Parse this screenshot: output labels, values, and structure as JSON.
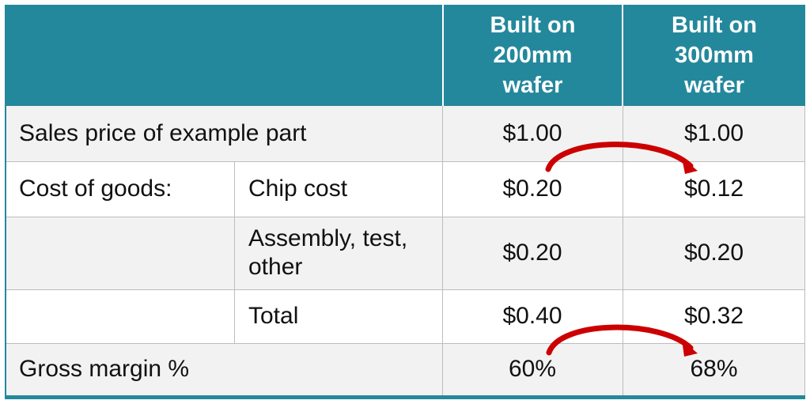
{
  "header": {
    "col_200": "Built on 200mm wafer",
    "col_300": "Built on 300mm wafer"
  },
  "rows": {
    "sales": {
      "label": "Sales price of example part",
      "v200": "$1.00",
      "v300": "$1.00"
    },
    "chip": {
      "label": "Cost of goods:",
      "sublabel": "Chip cost",
      "v200": "$0.20",
      "v300": "$0.12"
    },
    "assembly": {
      "sublabel": "Assembly, test, other",
      "v200": "$0.20",
      "v300": "$0.20"
    },
    "total": {
      "sublabel": "Total",
      "v200": "$0.40",
      "v300": "$0.32"
    },
    "margin": {
      "label": "Gross margin %",
      "v200": "60%",
      "v300": "68%"
    }
  },
  "colors": {
    "header": "#24889c",
    "row_shade": "#f2f2f2",
    "arrow": "#cc0000"
  },
  "icons": [
    "curved-arrow-chip-cost-icon",
    "curved-arrow-gross-margin-icon"
  ]
}
